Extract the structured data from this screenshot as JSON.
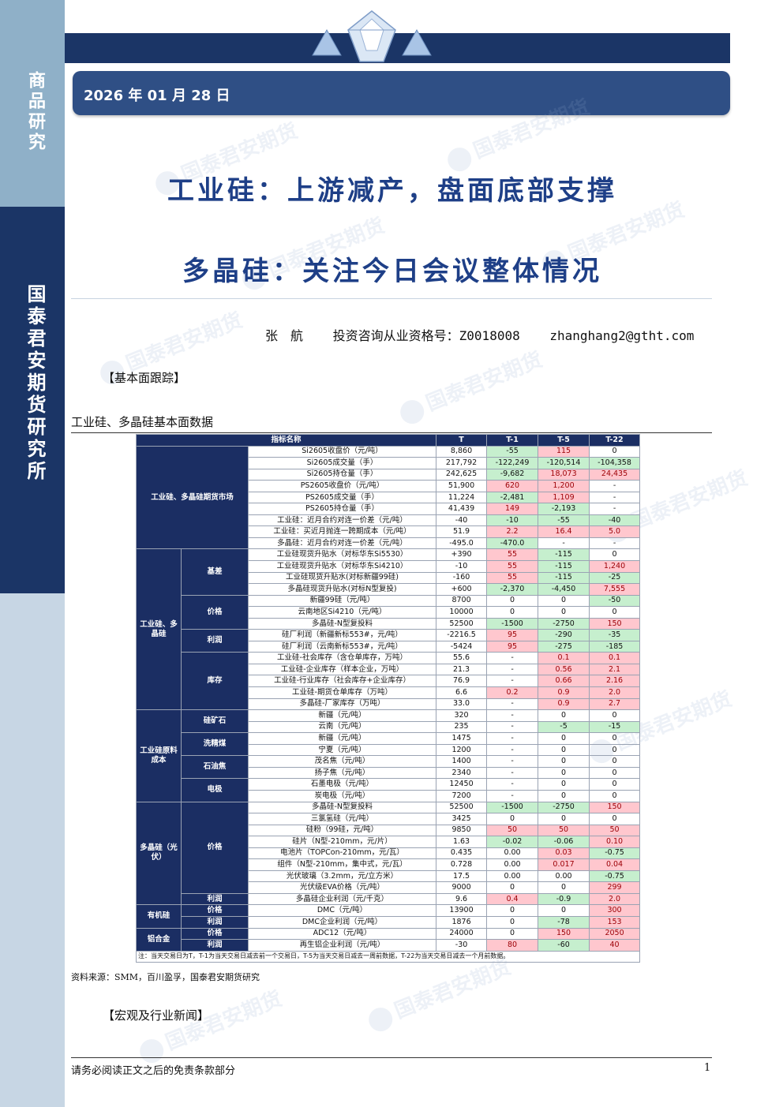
{
  "sidebar": {
    "category": "商品研究",
    "institute": "国泰君安期货研究所"
  },
  "header": {
    "date": "2026 年 01 月 28 日"
  },
  "watermark": "国泰君安期货",
  "titles": {
    "main": "工业硅：上游减产，盘面底部支撑",
    "sub": "多晶硅：关注今日会议整体情况"
  },
  "author": {
    "name": "张　航",
    "license": "投资咨询从业资格号：Z0018008",
    "email": "zhanghang2@gtht.com"
  },
  "section_basic": "【基本面跟踪】",
  "table_title": "工业硅、多晶硅基本面数据",
  "table": {
    "headers": [
      "指标名称",
      "T",
      "T-1",
      "T-5",
      "T-22"
    ],
    "groups": [
      {
        "label": "工业硅、多晶硅期货市场",
        "subgroups": [
          {
            "label": "",
            "rows": [
              [
                "Si2605收盘价（元/吨）",
                "8,860",
                "-55",
                "115",
                "0"
              ],
              [
                "Si2605成交量（手）",
                "217,792",
                "-122,249",
                "-120,514",
                "-104,358"
              ],
              [
                "Si2605持仓量（手）",
                "242,625",
                "-9,682",
                "18,073",
                "24,435"
              ],
              [
                "PS2605收盘价（元/吨）",
                "51,900",
                "620",
                "1,200",
                "-"
              ],
              [
                "PS2605成交量（手）",
                "11,224",
                "-2,481",
                "1,109",
                "-"
              ],
              [
                "PS2605持仓量（手）",
                "41,439",
                "149",
                "-2,193",
                "-"
              ],
              [
                "工业硅：近月合约对连一价差（元/吨）",
                "-40",
                "-10",
                "-55",
                "-40"
              ],
              [
                "工业硅：买近月抛连一跨期成本（元/吨）",
                "51.9",
                "2.2",
                "16.4",
                "5.0"
              ],
              [
                "多晶硅：近月合约对连一价差（元/吨）",
                "-495.0",
                "-470.0",
                "-",
                "-"
              ]
            ]
          }
        ]
      },
      {
        "label": "工业硅、多晶硅",
        "subgroups": [
          {
            "label": "基差",
            "rows": [
              [
                "工业硅现货升贴水（对标华东Si5530）",
                "+390",
                "55",
                "-115",
                "0"
              ],
              [
                "工业硅现货升贴水（对标华东Si4210）",
                "-10",
                "55",
                "-115",
                "1,240"
              ],
              [
                "工业硅现货升贴水(对标新疆99硅)",
                "-160",
                "55",
                "-115",
                "-25"
              ],
              [
                "多晶硅现货升贴水(对标N型复投)",
                "+600",
                "-2,370",
                "-4,450",
                "7,555"
              ]
            ]
          },
          {
            "label": "价格",
            "rows": [
              [
                "新疆99硅（元/吨）",
                "8700",
                "0",
                "0",
                "-50"
              ],
              [
                "云南地区Si4210（元/吨）",
                "10000",
                "0",
                "0",
                "0"
              ],
              [
                "多晶硅-N型复投料",
                "52500",
                "-1500",
                "-2750",
                "150"
              ]
            ]
          },
          {
            "label": "利润",
            "rows": [
              [
                "硅厂利润（新疆新标553#，元/吨）",
                "-2216.5",
                "95",
                "-290",
                "-35"
              ],
              [
                "硅厂利润（云南新标553#，元/吨）",
                "-5424",
                "95",
                "-275",
                "-185"
              ]
            ]
          },
          {
            "label": "库存",
            "rows": [
              [
                "工业硅-社会库存（含仓单库存，万吨）",
                "55.6",
                "-",
                "0.1",
                "0.1"
              ],
              [
                "工业硅-企业库存（样本企业，万吨）",
                "21.3",
                "-",
                "0.56",
                "2.1"
              ],
              [
                "工业硅-行业库存（社会库存+企业库存）",
                "76.9",
                "-",
                "0.66",
                "2.16"
              ],
              [
                "工业硅-期货仓单库存（万吨）",
                "6.6",
                "0.2",
                "0.9",
                "2.0"
              ],
              [
                "多晶硅-厂家库存（万吨）",
                "33.0",
                "-",
                "0.9",
                "2.7"
              ]
            ]
          }
        ]
      },
      {
        "label": "工业硅原料成本",
        "subgroups": [
          {
            "label": "硅矿石",
            "rows": [
              [
                "新疆（元/吨）",
                "320",
                "-",
                "0",
                "0"
              ],
              [
                "云南（元/吨）",
                "235",
                "-",
                "-5",
                "-15"
              ]
            ]
          },
          {
            "label": "洗精煤",
            "rows": [
              [
                "新疆（元/吨）",
                "1475",
                "-",
                "0",
                "0"
              ],
              [
                "宁夏（元/吨）",
                "1200",
                "-",
                "0",
                "0"
              ]
            ]
          },
          {
            "label": "石油焦",
            "rows": [
              [
                "茂名焦（元/吨）",
                "1400",
                "-",
                "0",
                "0"
              ],
              [
                "扬子焦（元/吨）",
                "2340",
                "-",
                "0",
                "0"
              ]
            ]
          },
          {
            "label": "电极",
            "rows": [
              [
                "石墨电极（元/吨）",
                "12450",
                "-",
                "0",
                "0"
              ],
              [
                "炭电极（元/吨）",
                "7200",
                "-",
                "0",
                "0"
              ]
            ]
          }
        ]
      },
      {
        "label": "多晶硅（光伏）",
        "subgroups": [
          {
            "label": "价格",
            "rows": [
              [
                "多晶硅-N型复投料",
                "52500",
                "-1500",
                "-2750",
                "150"
              ],
              [
                "三氯氢硅（元/吨）",
                "3425",
                "0",
                "0",
                "0"
              ],
              [
                "硅粉（99硅，元/吨）",
                "9850",
                "50",
                "50",
                "50"
              ],
              [
                "硅片（N型-210mm，元/片）",
                "1.63",
                "-0.02",
                "-0.06",
                "0.10"
              ],
              [
                "电池片（TOPCon-210mm，元/瓦）",
                "0.435",
                "0.00",
                "0.03",
                "-0.75"
              ],
              [
                "组件（N型-210mm，集中式，元/瓦）",
                "0.728",
                "0.00",
                "0.017",
                "0.04"
              ],
              [
                "光伏玻璃（3.2mm，元/立方米）",
                "17.5",
                "0.00",
                "0.00",
                "-0.75"
              ],
              [
                "光伏级EVA价格（元/吨）",
                "9000",
                "0",
                "0",
                "299"
              ]
            ]
          },
          {
            "label": "利润",
            "rows": [
              [
                "多晶硅企业利润（元/千克）",
                "9.6",
                "0.4",
                "-0.9",
                "2.0"
              ]
            ]
          }
        ]
      },
      {
        "label": "有机硅",
        "subgroups": [
          {
            "label": "价格",
            "rows": [
              [
                "DMC（元/吨）",
                "13900",
                "0",
                "0",
                "300"
              ]
            ]
          },
          {
            "label": "利润",
            "rows": [
              [
                "DMC企业利润（元/吨）",
                "1876",
                "0",
                "-78",
                "153"
              ]
            ]
          }
        ]
      },
      {
        "label": "铝合金",
        "subgroups": [
          {
            "label": "价格",
            "rows": [
              [
                "ADC12（元/吨）",
                "24000",
                "0",
                "150",
                "2050"
              ]
            ]
          },
          {
            "label": "利润",
            "rows": [
              [
                "再生铝企业利润（元/吨）",
                "-30",
                "80",
                "-60",
                "40"
              ]
            ]
          }
        ]
      }
    ],
    "note": "注：当天交易日为T，T-1为当天交易日减去前一个交易日，T-5为当天交易日减去一周前数据，T-22为当天交易日减去一个月前数据。",
    "colors": {
      "positive": "#ffc7ce",
      "negative": "#c6efce",
      "header": "#1b2e63"
    }
  },
  "source": "资料来源：SMM，百川盈孚，国泰君安期货研究",
  "section_news": "【宏观及行业新闻】",
  "footer": {
    "disclaimer": "请务必阅读正文之后的免责条款部分",
    "page": "1"
  }
}
